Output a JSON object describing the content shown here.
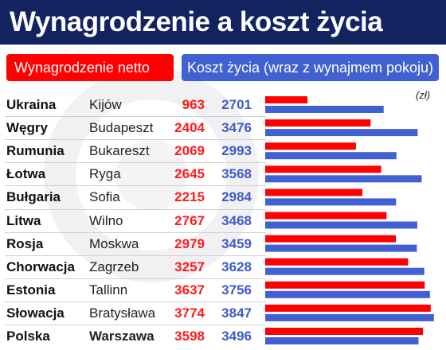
{
  "title": "Wynagrodzenie a koszt życia",
  "legend": {
    "net_label": "Wynagrodzenie netto",
    "cost_label": "Koszt życia (wraz z wynajmem pokoju)",
    "net_color": "#ff0000",
    "cost_color": "#4160d1"
  },
  "unit": "(zł)",
  "chart_data": {
    "type": "bar",
    "orientation": "horizontal",
    "categories": [
      "Ukraina",
      "Węgry",
      "Rumunia",
      "Łotwa",
      "Bułgaria",
      "Litwa",
      "Rosja",
      "Chorwacja",
      "Estonia",
      "Słowacja",
      "Polska"
    ],
    "cities": [
      "Kijów",
      "Budapeszt",
      "Bukareszt",
      "Ryga",
      "Sofia",
      "Wilno",
      "Moskwa",
      "Zagrzeb",
      "Tallinn",
      "Bratysława",
      "Warszawa"
    ],
    "series": [
      {
        "name": "Wynagrodzenie netto",
        "color": "#ff0000",
        "values": [
          963,
          2404,
          2069,
          2645,
          2215,
          2767,
          2979,
          3257,
          3637,
          3774,
          3598
        ]
      },
      {
        "name": "Koszt życia (wraz z wynajmem pokoju)",
        "color": "#4160d1",
        "values": [
          2701,
          3476,
          2993,
          3568,
          2984,
          3468,
          3459,
          3628,
          3756,
          3847,
          3496
        ]
      }
    ],
    "xlim": [
      0,
      3850
    ],
    "unit": "(zł)",
    "grid": false,
    "legend_position": "top"
  }
}
